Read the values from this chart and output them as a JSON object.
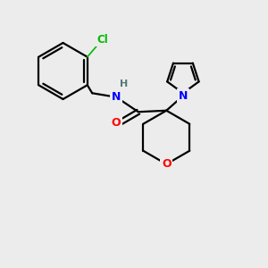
{
  "background_color": "#ececec",
  "atom_colors": {
    "C": "#000000",
    "N": "#0000ff",
    "O": "#ff0000",
    "Cl": "#00bb00",
    "H": "#557777"
  },
  "bond_color": "#000000",
  "bond_width": 1.6,
  "figsize": [
    3.0,
    3.0
  ],
  "dpi": 100
}
